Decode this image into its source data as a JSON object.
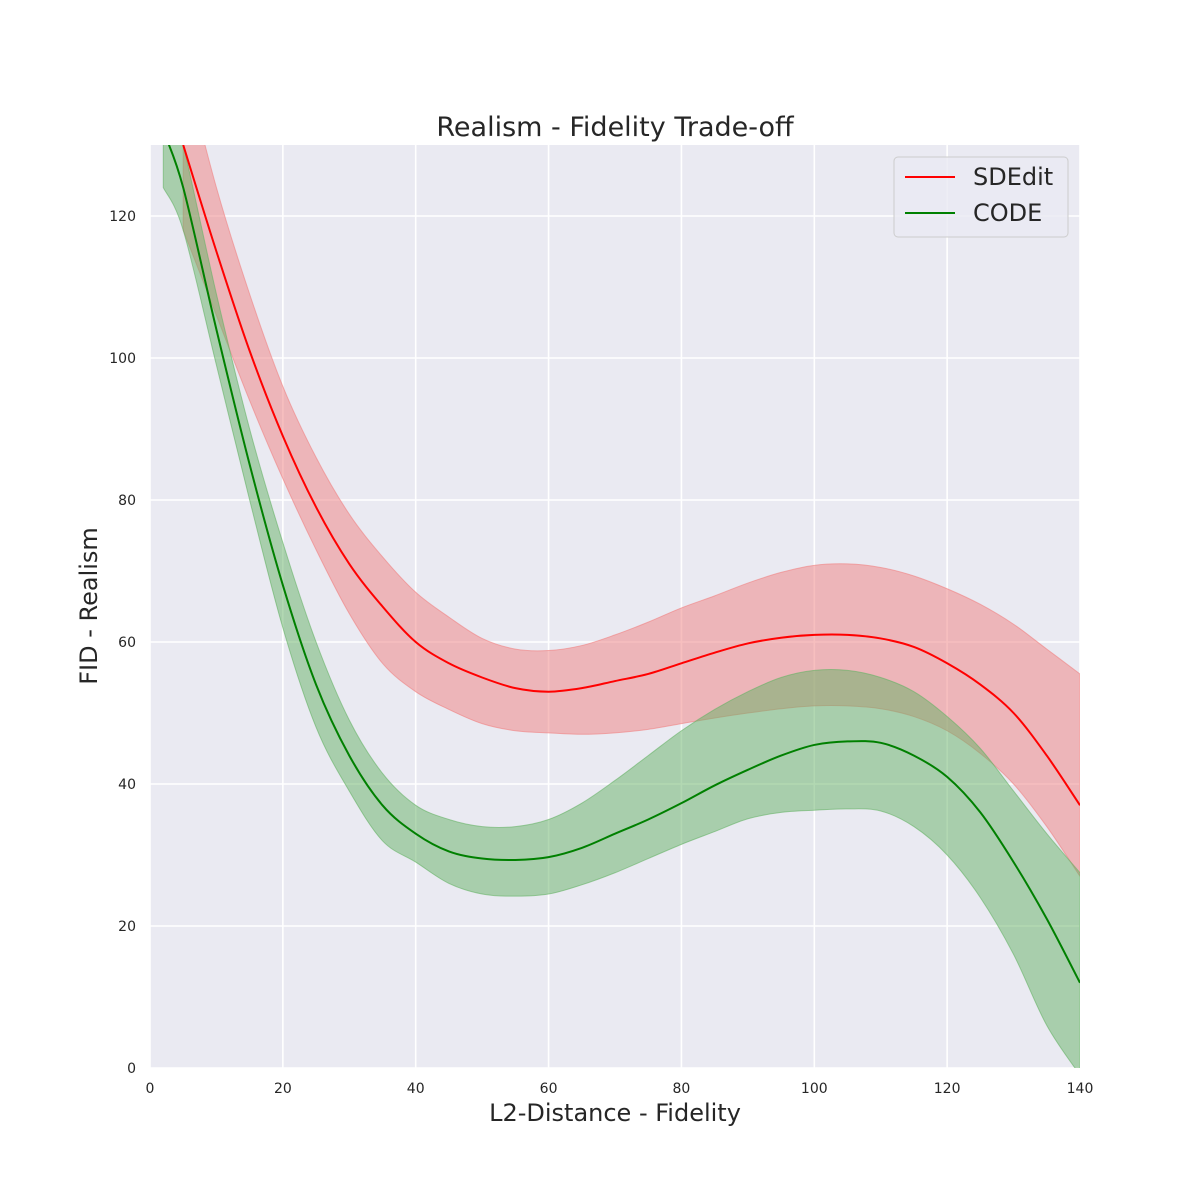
{
  "chart_data": {
    "type": "line",
    "title": "Realism - Fidelity Trade-off",
    "xlabel": "L2-Distance - Fidelity",
    "ylabel": "FID - Realism",
    "xlim": [
      0,
      140
    ],
    "ylim": [
      0,
      130
    ],
    "xticks": [
      0,
      20,
      40,
      60,
      80,
      100,
      120,
      140
    ],
    "yticks": [
      0,
      20,
      40,
      60,
      80,
      100,
      120
    ],
    "grid": true,
    "legend_position": "top-right",
    "series": [
      {
        "name": "SDEdit",
        "color": "#ff0000",
        "band_color": "#f08080",
        "x": [
          5,
          10,
          15,
          20,
          25,
          30,
          35,
          40,
          45,
          50,
          55,
          60,
          65,
          70,
          75,
          80,
          85,
          90,
          95,
          100,
          105,
          110,
          115,
          120,
          125,
          130,
          135,
          140
        ],
        "y": [
          130,
          115,
          101,
          89,
          79,
          71,
          65,
          60,
          57,
          55,
          53.5,
          53,
          53.5,
          54.5,
          55.5,
          57,
          58.5,
          59.8,
          60.6,
          61,
          61,
          60.5,
          59.3,
          57,
          54,
          50,
          44,
          37
        ],
        "upper": [
          142,
          124,
          109,
          96,
          86,
          78,
          72,
          67,
          63.5,
          60.5,
          59,
          58.8,
          59.5,
          61,
          62.8,
          64.8,
          66.5,
          68.3,
          69.8,
          70.8,
          71,
          70.5,
          69.3,
          67.5,
          65.3,
          62.5,
          59,
          55.5
        ],
        "lower": [
          118,
          106,
          94,
          83,
          73,
          64,
          57,
          53,
          50.5,
          48.5,
          47.5,
          47.2,
          47,
          47.2,
          47.7,
          48.5,
          49.3,
          50,
          50.6,
          51,
          51,
          50.6,
          49.5,
          47.5,
          44.3,
          40,
          34,
          27
        ]
      },
      {
        "name": "CODE",
        "color": "#008000",
        "band_color": "#66b266",
        "x": [
          2,
          5,
          10,
          15,
          20,
          25,
          30,
          35,
          40,
          45,
          50,
          55,
          60,
          65,
          70,
          75,
          80,
          85,
          90,
          95,
          100,
          105,
          110,
          115,
          120,
          125,
          130,
          135,
          140
        ],
        "y": [
          132,
          124,
          104,
          85,
          68,
          54,
          44,
          37,
          33,
          30.5,
          29.5,
          29.3,
          29.7,
          31,
          33,
          35,
          37.3,
          39.8,
          42,
          44,
          45.5,
          46,
          45.8,
          44,
          41,
          36,
          29,
          21,
          12
        ],
        "upper": [
          140,
          130,
          109,
          90,
          74,
          60,
          49,
          41.5,
          37,
          35,
          34,
          34,
          35,
          37.3,
          40.5,
          44,
          47.5,
          50.5,
          53,
          55,
          56,
          56,
          55,
          53,
          49.5,
          45,
          39,
          33,
          27.5
        ],
        "lower": [
          124,
          118,
          99,
          80,
          62,
          48,
          39,
          32,
          29,
          26,
          24.5,
          24.2,
          24.5,
          25.8,
          27.5,
          29.5,
          31.5,
          33.3,
          35.1,
          36,
          36.3,
          36.5,
          36.2,
          34,
          30,
          24,
          16,
          6,
          -1
        ]
      }
    ]
  }
}
